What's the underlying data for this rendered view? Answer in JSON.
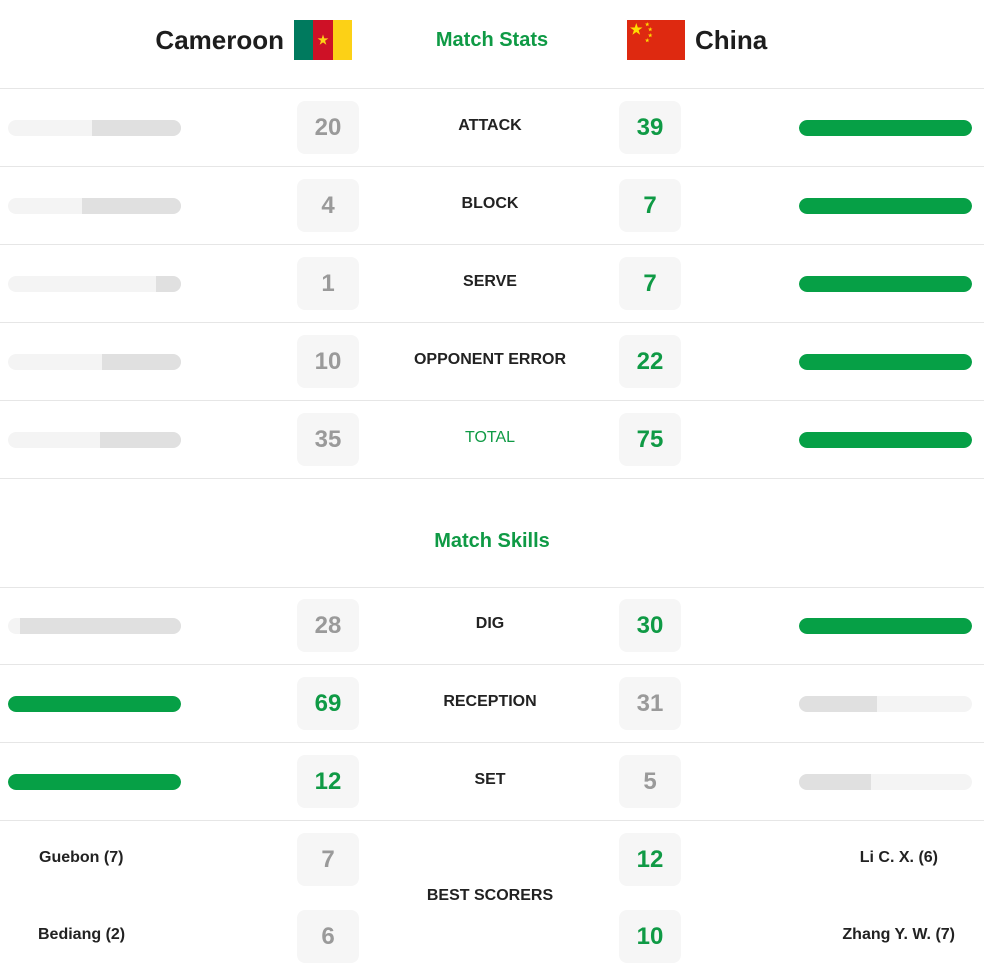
{
  "header": {
    "home_team": "Cameroon",
    "away_team": "China",
    "title": "Match Stats"
  },
  "colors": {
    "accent": "#0f9a45",
    "bar_win": "#06a046",
    "bar_lose": "#e0e0e0"
  },
  "stats": [
    {
      "label": "ATTACK",
      "home": 20,
      "away": 39
    },
    {
      "label": "BLOCK",
      "home": 4,
      "away": 7
    },
    {
      "label": "SERVE",
      "home": 1,
      "away": 7
    },
    {
      "label": "OPPONENT ERROR",
      "home": 10,
      "away": 22
    },
    {
      "label": "TOTAL",
      "home": 35,
      "away": 75
    }
  ],
  "skills_title": "Match Skills",
  "skills": [
    {
      "label": "DIG",
      "home": 28,
      "away": 30
    },
    {
      "label": "RECEPTION",
      "home": 69,
      "away": 31
    },
    {
      "label": "SET",
      "home": 12,
      "away": 5
    }
  ],
  "best_scorers": {
    "label": "BEST SCORERS",
    "home": [
      {
        "name": "Guebon (7)",
        "points": 7
      },
      {
        "name": "Bediang (2)",
        "points": 6
      }
    ],
    "away": [
      {
        "name": "Li C. X. (6)",
        "points": 12
      },
      {
        "name": "Zhang Y. W. (7)",
        "points": 10
      }
    ]
  }
}
